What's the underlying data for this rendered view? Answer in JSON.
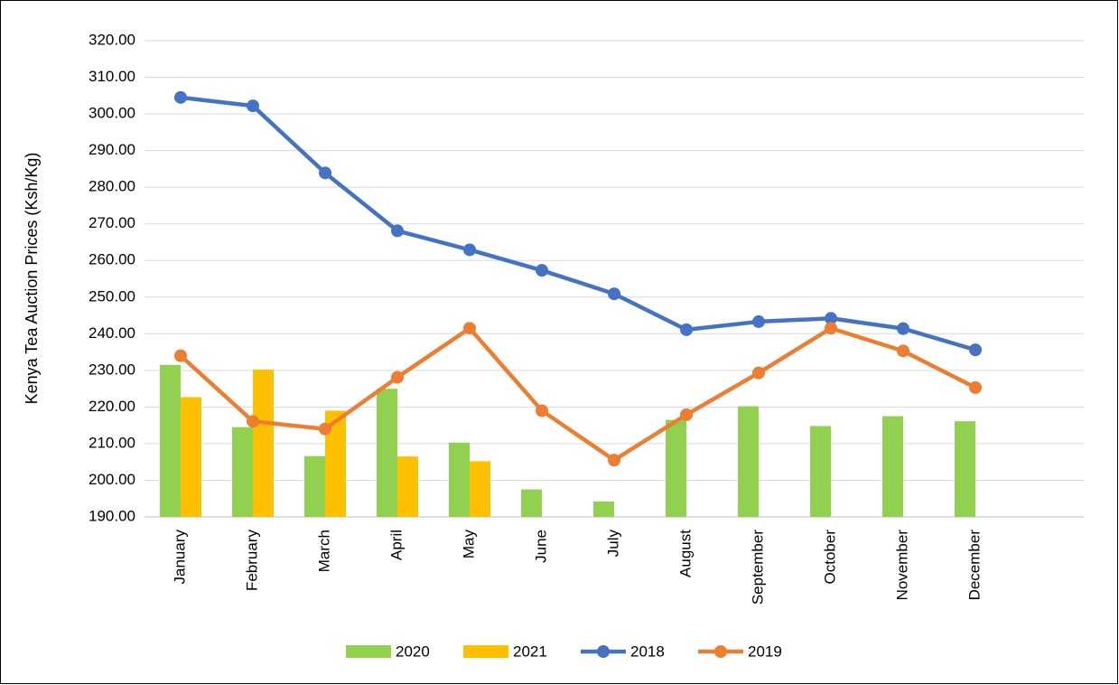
{
  "chart_data": {
    "type": "bar",
    "y_label": "Kenya Tea Auction Prices (Ksh/Kg)",
    "categories": [
      "January",
      "February",
      "March",
      "April",
      "May",
      "June",
      "July",
      "August",
      "September",
      "October",
      "November",
      "December",
      null
    ],
    "series": [
      {
        "name": "2020",
        "type": "bar",
        "color": "#92d050",
        "values": [
          231.5,
          214.5,
          206.6,
          225.0,
          210.3,
          197.5,
          194.2,
          216.5,
          220.2,
          214.8,
          217.5,
          216.1,
          null
        ]
      },
      {
        "name": "2021",
        "type": "bar",
        "color": "#ffc000",
        "values": [
          222.7,
          230.2,
          219.0,
          206.5,
          205.2,
          null,
          null,
          null,
          null,
          null,
          null,
          null,
          null
        ]
      },
      {
        "name": "2018",
        "type": "line",
        "color": "#4472c4",
        "values": [
          304.5,
          302.2,
          283.9,
          268.1,
          262.9,
          257.3,
          250.9,
          241.1,
          243.3,
          244.2,
          241.4,
          235.6,
          null
        ]
      },
      {
        "name": "2019",
        "type": "line",
        "color": "#ed7d31",
        "values": [
          234.0,
          216.1,
          214.0,
          228.1,
          241.5,
          219.0,
          205.5,
          217.9,
          229.3,
          241.5,
          235.3,
          225.3,
          null
        ]
      }
    ],
    "ylim": [
      190,
      320
    ],
    "yticks": [
      {
        "value": 190,
        "label": "190.00"
      },
      {
        "value": 200,
        "label": "200.00"
      },
      {
        "value": 210,
        "label": "210.00"
      },
      {
        "value": 220,
        "label": "220.00"
      },
      {
        "value": 230,
        "label": "230.00"
      },
      {
        "value": 240,
        "label": "240.00"
      },
      {
        "value": 250,
        "label": "250.00"
      },
      {
        "value": 260,
        "label": "260.00"
      },
      {
        "value": 270,
        "label": "270.00"
      },
      {
        "value": 280,
        "label": "280.00"
      },
      {
        "value": 290,
        "label": "290.00"
      },
      {
        "value": 300,
        "label": "300.00"
      },
      {
        "value": 310,
        "label": "310.00"
      },
      {
        "value": 320,
        "label": "320.00"
      }
    ],
    "grid": true,
    "legend": "bottom"
  }
}
